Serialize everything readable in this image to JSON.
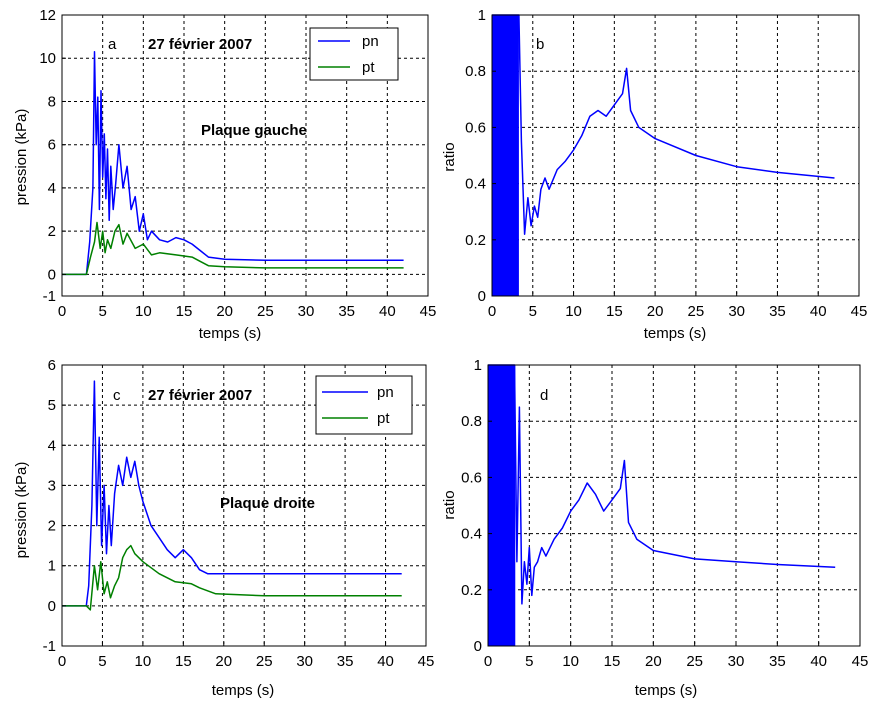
{
  "colors": {
    "pn": "#0000ff",
    "pt": "#008000",
    "axis": "#000000",
    "background": "#ffffff"
  },
  "chart_data": [
    {
      "id": "a",
      "type": "line",
      "panel_label": "a",
      "annotation_date": "27 février 2007",
      "annotation_plate": "Plaque gauche",
      "xlabel": "temps (s)",
      "ylabel": "pression (kPa)",
      "xlim": [
        0,
        45
      ],
      "ylim": [
        -1,
        12
      ],
      "xticks": [
        0,
        5,
        10,
        15,
        20,
        25,
        30,
        35,
        40,
        45
      ],
      "xtick_labels": [
        "0",
        "5",
        "10",
        "15",
        "20",
        "25",
        "30",
        "35",
        "40",
        "45"
      ],
      "yticks": [
        -1,
        0,
        2,
        4,
        6,
        8,
        10,
        12
      ],
      "ytick_labels": [
        "-1",
        "0",
        "2",
        "4",
        "6",
        "8",
        "10",
        "12"
      ],
      "grid": true,
      "legend_position": "top-right",
      "series": [
        {
          "name": "pn",
          "color": "#0000ff",
          "x": [
            0,
            3,
            3.4,
            3.8,
            4.0,
            4.2,
            4.4,
            4.6,
            4.8,
            5.0,
            5.2,
            5.4,
            5.6,
            5.8,
            6.0,
            6.3,
            6.6,
            7.0,
            7.5,
            8.0,
            8.5,
            9.0,
            9.5,
            10.0,
            10.5,
            11,
            12,
            13,
            14,
            15,
            16,
            17,
            18,
            20,
            25,
            30,
            42
          ],
          "y": [
            0,
            0,
            1.5,
            4.0,
            10.3,
            6.0,
            8.2,
            3.0,
            8.5,
            4.5,
            6.5,
            3.5,
            5.8,
            2.5,
            5.0,
            3.0,
            4.2,
            6.0,
            4.0,
            5.0,
            3.0,
            3.6,
            2.0,
            2.8,
            1.6,
            2.0,
            1.6,
            1.5,
            1.7,
            1.6,
            1.4,
            1.1,
            0.8,
            0.7,
            0.65,
            0.65,
            0.65
          ]
        },
        {
          "name": "pt",
          "color": "#008000",
          "x": [
            0,
            3,
            3.5,
            4.0,
            4.3,
            4.7,
            5.0,
            5.3,
            5.6,
            6.0,
            6.5,
            7.0,
            7.5,
            8.0,
            9.0,
            10.0,
            11,
            12,
            14,
            16,
            17,
            18,
            20,
            25,
            42
          ],
          "y": [
            0,
            0,
            0.8,
            1.5,
            2.4,
            1.2,
            2.0,
            1.0,
            1.6,
            1.2,
            2.0,
            2.3,
            1.4,
            1.9,
            1.2,
            1.4,
            0.9,
            1.0,
            0.9,
            0.8,
            0.6,
            0.4,
            0.35,
            0.3,
            0.3
          ]
        }
      ]
    },
    {
      "id": "b",
      "type": "line",
      "panel_label": "b",
      "xlabel": "temps (s)",
      "ylabel": "ratio",
      "xlim": [
        0,
        45
      ],
      "ylim": [
        0,
        1
      ],
      "xticks": [
        0,
        5,
        10,
        15,
        20,
        25,
        30,
        35,
        40,
        45
      ],
      "xtick_labels": [
        "0",
        "5",
        "10",
        "15",
        "20",
        "25",
        "30",
        "35",
        "40",
        "45"
      ],
      "yticks": [
        0,
        0.2,
        0.4,
        0.6,
        0.8,
        1
      ],
      "ytick_labels": [
        "0",
        "0.2",
        "0.4",
        "0.6",
        "0.8",
        "1"
      ],
      "grid": true,
      "series": [
        {
          "name": "",
          "color": "#0000ff",
          "x": [
            0,
            3.3,
            3.6,
            4.0,
            4.4,
            4.8,
            5.2,
            5.6,
            6.0,
            6.5,
            7.0,
            8.0,
            9.0,
            10.0,
            11.0,
            12.0,
            13.0,
            14.0,
            15.0,
            16.0,
            16.5,
            17.0,
            18.0,
            20.0,
            25.0,
            30.0,
            35.0,
            42.0
          ],
          "y": [
            1.0,
            1.0,
            0.55,
            0.22,
            0.35,
            0.25,
            0.32,
            0.28,
            0.38,
            0.42,
            0.38,
            0.45,
            0.48,
            0.52,
            0.57,
            0.64,
            0.66,
            0.64,
            0.68,
            0.72,
            0.81,
            0.66,
            0.6,
            0.56,
            0.5,
            0.46,
            0.44,
            0.42
          ]
        }
      ]
    },
    {
      "id": "c",
      "type": "line",
      "panel_label": "c",
      "annotation_date": "27 février 2007",
      "annotation_plate": "Plaque droite",
      "xlabel": "temps (s)",
      "ylabel": "pression (kPa)",
      "xlim": [
        0,
        45
      ],
      "ylim": [
        -1,
        6
      ],
      "xticks": [
        0,
        5,
        10,
        15,
        20,
        25,
        30,
        35,
        40,
        45
      ],
      "xtick_labels": [
        "0",
        "5",
        "10",
        "15",
        "20",
        "25",
        "30",
        "35",
        "40",
        "45"
      ],
      "yticks": [
        -1,
        0,
        1,
        2,
        3,
        4,
        5,
        6
      ],
      "ytick_labels": [
        "-1",
        "0",
        "1",
        "2",
        "3",
        "4",
        "5",
        "6"
      ],
      "grid": true,
      "legend_position": "top-right",
      "series": [
        {
          "name": "pn",
          "color": "#0000ff",
          "x": [
            0,
            3,
            3.3,
            3.7,
            4.0,
            4.3,
            4.6,
            4.9,
            5.2,
            5.5,
            5.8,
            6.1,
            6.5,
            7.0,
            7.5,
            8.0,
            8.5,
            9.0,
            9.5,
            10.0,
            11.0,
            12.0,
            13.0,
            14.0,
            15.0,
            16.0,
            17.0,
            18.0,
            25.0,
            42.0
          ],
          "y": [
            0,
            0,
            0.5,
            2.5,
            5.6,
            2.0,
            4.2,
            1.5,
            3.0,
            1.3,
            2.5,
            1.5,
            2.8,
            3.5,
            3.0,
            3.7,
            3.2,
            3.6,
            3.0,
            2.6,
            2.0,
            1.7,
            1.4,
            1.2,
            1.4,
            1.2,
            0.9,
            0.8,
            0.8,
            0.8
          ]
        },
        {
          "name": "pt",
          "color": "#008000",
          "x": [
            0,
            3,
            3.5,
            4.0,
            4.4,
            4.8,
            5.2,
            5.6,
            6.0,
            6.5,
            7.0,
            7.5,
            8.0,
            8.5,
            9.0,
            10.0,
            12.0,
            14.0,
            16.0,
            17.0,
            19.0,
            25.0,
            42.0
          ],
          "y": [
            0,
            0,
            -0.1,
            1.0,
            0.4,
            1.1,
            0.3,
            0.6,
            0.2,
            0.5,
            0.7,
            1.2,
            1.4,
            1.5,
            1.3,
            1.1,
            0.8,
            0.6,
            0.55,
            0.45,
            0.3,
            0.25,
            0.25
          ]
        }
      ]
    },
    {
      "id": "d",
      "type": "line",
      "panel_label": "d",
      "xlabel": "temps (s)",
      "ylabel": "ratio",
      "xlim": [
        0,
        45
      ],
      "ylim": [
        0,
        1
      ],
      "xticks": [
        0,
        5,
        10,
        15,
        20,
        25,
        30,
        35,
        40,
        45
      ],
      "xtick_labels": [
        "0",
        "5",
        "10",
        "15",
        "20",
        "25",
        "30",
        "35",
        "40",
        "45"
      ],
      "yticks": [
        0,
        0.2,
        0.4,
        0.6,
        0.8,
        1
      ],
      "ytick_labels": [
        "0",
        "0.2",
        "0.4",
        "0.6",
        "0.8",
        "1"
      ],
      "grid": true,
      "series": [
        {
          "name": "",
          "color": "#0000ff",
          "x": [
            0,
            3.2,
            3.5,
            3.8,
            4.1,
            4.4,
            4.7,
            5.0,
            5.3,
            5.6,
            6.0,
            6.5,
            7.0,
            8.0,
            9.0,
            10.0,
            11.0,
            12.0,
            13.0,
            14.0,
            15.0,
            16.0,
            16.5,
            17.0,
            18.0,
            20.0,
            25.0,
            30.0,
            35.0,
            42.0
          ],
          "y": [
            1.0,
            1.0,
            0.3,
            0.85,
            0.15,
            0.3,
            0.22,
            0.35,
            0.18,
            0.28,
            0.3,
            0.35,
            0.32,
            0.38,
            0.42,
            0.48,
            0.52,
            0.58,
            0.54,
            0.48,
            0.52,
            0.56,
            0.66,
            0.44,
            0.38,
            0.34,
            0.31,
            0.3,
            0.29,
            0.28
          ]
        }
      ]
    }
  ]
}
